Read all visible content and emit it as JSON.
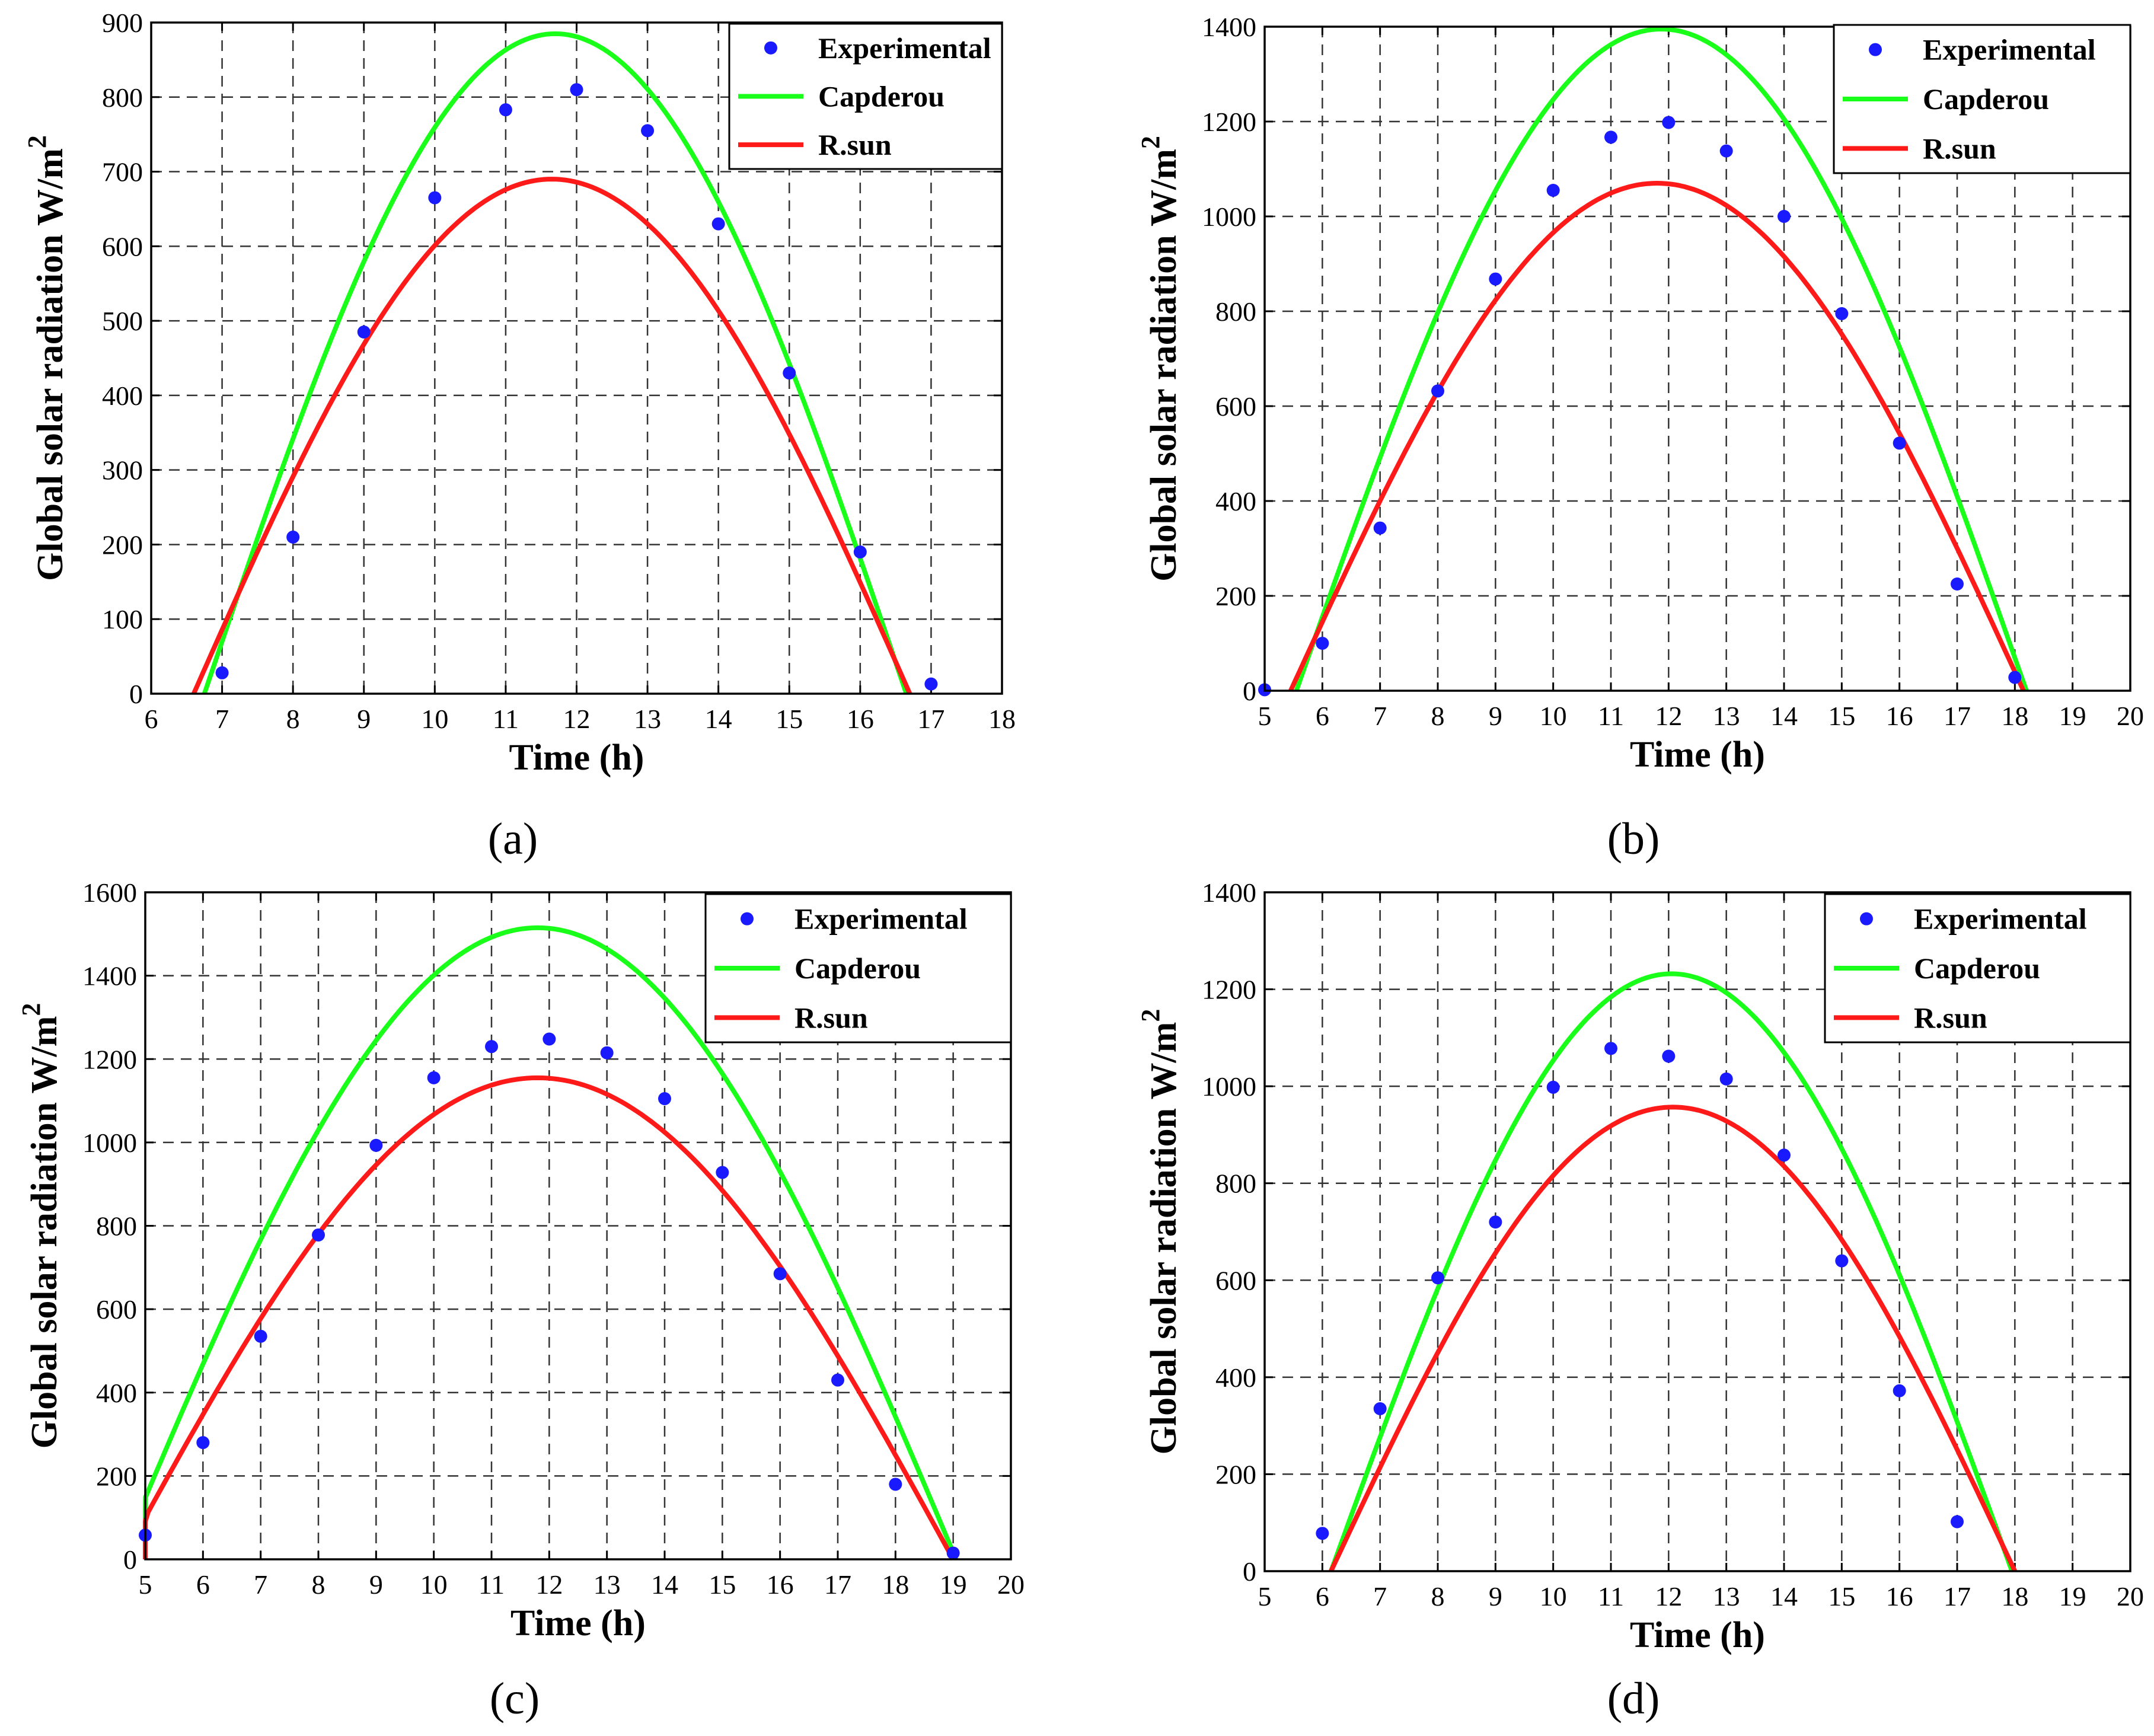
{
  "figure": {
    "legend_labels": {
      "experimental": "Experimental",
      "capderou": "Capderou",
      "rsun": "R.sun"
    },
    "colors": {
      "experimental": "#1a1aff",
      "capderou": "#1aff1a",
      "rsun": "#ff1a1a"
    }
  },
  "chart_data": [
    {
      "type": "line",
      "caption": "(a)",
      "xlabel": "Time (h)",
      "ylabel": "Global solar radiation W/m",
      "ylabel_sup": "2",
      "xlim": [
        6,
        18
      ],
      "ylim": [
        0,
        900
      ],
      "xticks": [
        6,
        7,
        8,
        9,
        10,
        11,
        12,
        13,
        14,
        15,
        16,
        17,
        18
      ],
      "yticks": [
        0,
        100,
        200,
        300,
        400,
        500,
        600,
        700,
        800,
        900
      ],
      "legend": [
        "Experimental",
        "Capderou",
        "R.sun"
      ],
      "series": [
        {
          "name": "Experimental",
          "kind": "scatter",
          "x": [
            7,
            8,
            9,
            10,
            11,
            12,
            13,
            14,
            15,
            16,
            17
          ],
          "y": [
            28,
            210,
            485,
            665,
            783,
            810,
            755,
            630,
            430,
            190,
            13
          ]
        },
        {
          "name": "Capderou",
          "kind": "line",
          "model": "sine",
          "start": 6.75,
          "end": 16.65,
          "peak": 885
        },
        {
          "name": "R.sun",
          "kind": "line",
          "model": "sine",
          "start": 6.6,
          "end": 16.7,
          "peak": 690
        }
      ]
    },
    {
      "type": "line",
      "caption": "(b)",
      "xlabel": "Time (h)",
      "ylabel": "Global solar radiation W/m",
      "ylabel_sup": "2",
      "xlim": [
        5,
        20
      ],
      "ylim": [
        0,
        1400
      ],
      "xticks": [
        5,
        6,
        7,
        8,
        9,
        10,
        11,
        12,
        13,
        14,
        15,
        16,
        17,
        18,
        19,
        20
      ],
      "yticks": [
        0,
        200,
        400,
        600,
        800,
        1000,
        1200,
        1400
      ],
      "legend": [
        "Experimental",
        "Capderou",
        "R.sun"
      ],
      "series": [
        {
          "name": "Experimental",
          "kind": "scatter",
          "x": [
            5,
            6,
            7,
            8,
            9,
            10,
            11,
            12,
            13,
            14,
            15,
            16,
            17,
            18
          ],
          "y": [
            2,
            100,
            343,
            632,
            868,
            1055,
            1167,
            1198,
            1138,
            1000,
            795,
            522,
            225,
            28
          ]
        },
        {
          "name": "Capderou",
          "kind": "line",
          "model": "sine",
          "start": 5.55,
          "end": 18.2,
          "peak": 1395
        },
        {
          "name": "R.sun",
          "kind": "line",
          "model": "sine",
          "start": 5.45,
          "end": 18.15,
          "peak": 1070
        }
      ]
    },
    {
      "type": "line",
      "caption": "(c)",
      "xlabel": "Time (h)",
      "ylabel": "Global solar radiation W/m",
      "ylabel_sup": "2",
      "xlim": [
        5,
        20
      ],
      "ylim": [
        0,
        1600
      ],
      "xticks": [
        5,
        6,
        7,
        8,
        9,
        10,
        11,
        12,
        13,
        14,
        15,
        16,
        17,
        18,
        19,
        20
      ],
      "yticks": [
        0,
        200,
        400,
        600,
        800,
        1000,
        1200,
        1400,
        1600
      ],
      "legend": [
        "Experimental",
        "Capderou",
        "R.sun"
      ],
      "series": [
        {
          "name": "Experimental",
          "kind": "scatter",
          "x": [
            5,
            6,
            7,
            8,
            9,
            10,
            11,
            12,
            13,
            14,
            15,
            16,
            17,
            18,
            19
          ],
          "y": [
            58,
            280,
            535,
            778,
            993,
            1155,
            1230,
            1248,
            1215,
            1105,
            928,
            685,
            430,
            180,
            15
          ]
        },
        {
          "name": "Capderou",
          "kind": "line",
          "model": "sine",
          "start": 4.55,
          "end": 19.05,
          "peak": 1515
        },
        {
          "name": "R.sun",
          "kind": "line",
          "model": "sine",
          "start": 4.6,
          "end": 19.0,
          "peak": 1155
        }
      ]
    },
    {
      "type": "line",
      "caption": "(d)",
      "xlabel": "Time (h)",
      "ylabel": "Global solar radiation W/m",
      "ylabel_sup": "2",
      "xlim": [
        5,
        20
      ],
      "ylim": [
        0,
        1400
      ],
      "xticks": [
        5,
        6,
        7,
        8,
        9,
        10,
        11,
        12,
        13,
        14,
        15,
        16,
        17,
        18,
        19,
        20
      ],
      "yticks": [
        0,
        200,
        400,
        600,
        800,
        1000,
        1200,
        1400
      ],
      "legend": [
        "Experimental",
        "Capderou",
        "R.sun"
      ],
      "series": [
        {
          "name": "Experimental",
          "kind": "scatter",
          "x": [
            6,
            7,
            8,
            9,
            10,
            11,
            12,
            13,
            14,
            15,
            16,
            17
          ],
          "y": [
            78,
            335,
            605,
            720,
            998,
            1078,
            1062,
            1015,
            858,
            640,
            372,
            102
          ]
        },
        {
          "name": "Capderou",
          "kind": "line",
          "model": "sine",
          "start": 6.15,
          "end": 17.95,
          "peak": 1232
        },
        {
          "name": "R.sun",
          "kind": "line",
          "model": "sine",
          "start": 6.15,
          "end": 18.0,
          "peak": 957
        }
      ]
    }
  ]
}
